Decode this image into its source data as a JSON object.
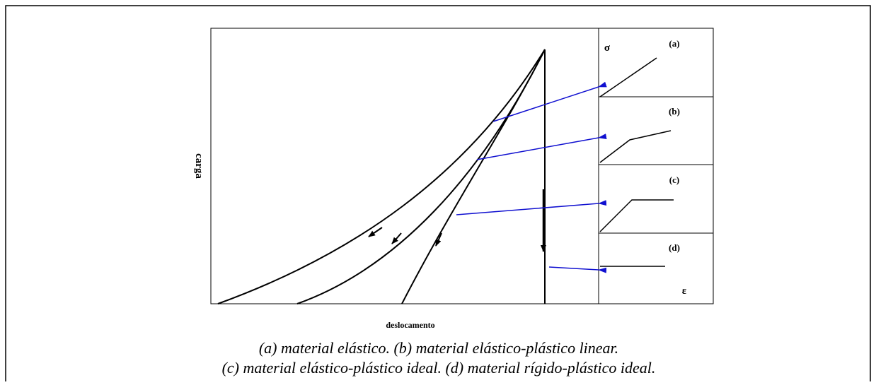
{
  "diagram": {
    "y_axis_label": "carga",
    "x_axis_label": "deslocamento",
    "panels": [
      {
        "label": "(a)"
      },
      {
        "label": "(b)"
      },
      {
        "label": "(c)"
      },
      {
        "label": "(d)"
      }
    ],
    "stress_symbol": "σ",
    "strain_symbol": "ε",
    "caption": [
      "(a) material elástico. (b) material elástico-plástico linear.",
      "(c) material elástico-plástico ideal. (d) material rígido-plástico ideal."
    ]
  }
}
